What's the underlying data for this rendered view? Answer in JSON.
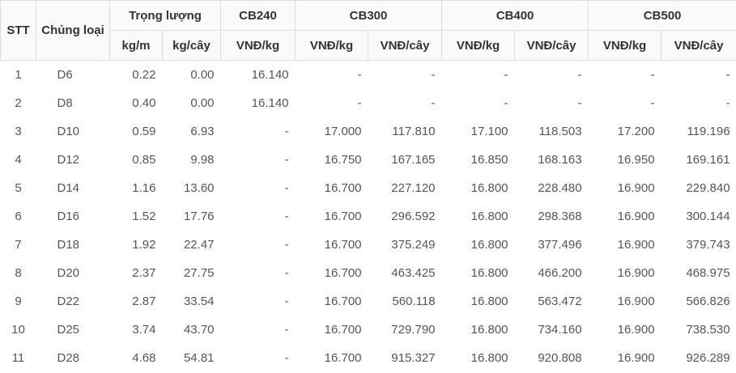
{
  "table": {
    "header": {
      "row1": [
        "STT",
        "Chủng loại",
        "Trọng lượng",
        "CB240",
        "CB300",
        "CB400",
        "CB500"
      ],
      "row2": [
        "kg/m",
        "kg/cây",
        "VNĐ/kg",
        "VNĐ/kg",
        "VNĐ/cây",
        "VNĐ/kg",
        "VNĐ/cây",
        "VNĐ/kg",
        "VNĐ/cây"
      ]
    },
    "rows": [
      [
        "1",
        "D6",
        "0.22",
        "0.00",
        "16.140",
        "-",
        "-",
        "-",
        "-",
        "-",
        "-"
      ],
      [
        "2",
        "D8",
        "0.40",
        "0.00",
        "16.140",
        "-",
        "-",
        "-",
        "-",
        "-",
        "-"
      ],
      [
        "3",
        "D10",
        "0.59",
        "6.93",
        "-",
        "17.000",
        "117.810",
        "17.100",
        "118.503",
        "17.200",
        "119.196"
      ],
      [
        "4",
        "D12",
        "0.85",
        "9.98",
        "-",
        "16.750",
        "167.165",
        "16.850",
        "168.163",
        "16.950",
        "169.161"
      ],
      [
        "5",
        "D14",
        "1.16",
        "13.60",
        "-",
        "16.700",
        "227.120",
        "16.800",
        "228.480",
        "16.900",
        "229.840"
      ],
      [
        "6",
        "D16",
        "1.52",
        "17.76",
        "-",
        "16.700",
        "296.592",
        "16.800",
        "298.368",
        "16.900",
        "300.144"
      ],
      [
        "7",
        "D18",
        "1.92",
        "22.47",
        "-",
        "16.700",
        "375.249",
        "16.800",
        "377.496",
        "16.900",
        "379.743"
      ],
      [
        "8",
        "D20",
        "2.37",
        "27.75",
        "-",
        "16.700",
        "463.425",
        "16.800",
        "466.200",
        "16.900",
        "468.975"
      ],
      [
        "9",
        "D22",
        "2.87",
        "33.54",
        "-",
        "16.700",
        "560.118",
        "16.800",
        "563.472",
        "16.900",
        "566.826"
      ],
      [
        "10",
        "D25",
        "3.74",
        "43.70",
        "-",
        "16.700",
        "729.790",
        "16.800",
        "734.160",
        "16.900",
        "738.530"
      ],
      [
        "11",
        "D28",
        "4.68",
        "54.81",
        "-",
        "16.700",
        "915.327",
        "16.800",
        "920.808",
        "16.900",
        "926.289"
      ]
    ]
  }
}
